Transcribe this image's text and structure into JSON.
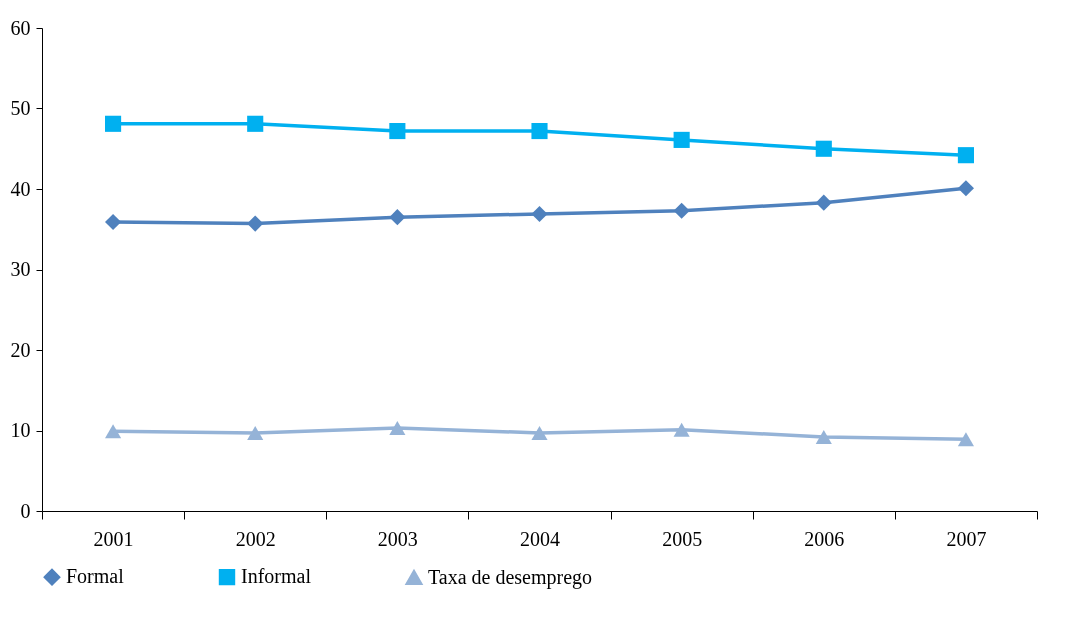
{
  "chart_data": {
    "type": "line",
    "categories": [
      "2001",
      "2002",
      "2003",
      "2004",
      "2005",
      "2006",
      "2007"
    ],
    "series": [
      {
        "name": "Formal",
        "color": "#4f81bd",
        "marker": "diamond",
        "values": [
          35.9,
          35.7,
          36.5,
          36.9,
          37.3,
          38.3,
          40.1
        ]
      },
      {
        "name": "Informal",
        "color": "#00b0f0",
        "marker": "square",
        "values": [
          48.1,
          48.1,
          47.2,
          47.2,
          46.1,
          45.0,
          44.2
        ]
      },
      {
        "name": "Taxa de desemprego",
        "color": "#95b3d7",
        "marker": "triangle",
        "values": [
          9.9,
          9.7,
          10.3,
          9.7,
          10.1,
          9.2,
          8.9
        ]
      }
    ],
    "ylim": [
      0,
      60
    ],
    "yticks": [
      0,
      10,
      20,
      30,
      40,
      50,
      60
    ],
    "grid": false,
    "legend": "bottom"
  }
}
